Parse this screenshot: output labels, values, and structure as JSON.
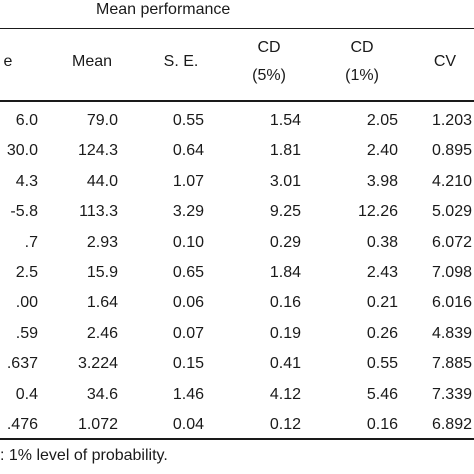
{
  "table": {
    "group_header": "Mean performance",
    "headers": [
      {
        "key": "range",
        "line1": "e",
        "line2": ""
      },
      {
        "key": "mean",
        "line1": "Mean",
        "line2": ""
      },
      {
        "key": "se",
        "line1": "S. E.",
        "line2": ""
      },
      {
        "key": "cd5",
        "line1": "CD",
        "line2": "(5%)"
      },
      {
        "key": "cd1",
        "line1": "CD",
        "line2": "(1%)"
      },
      {
        "key": "cv",
        "line1": "CV",
        "line2": ""
      }
    ],
    "rows": [
      [
        "6.0",
        "79.0",
        "0.55",
        "1.54",
        "2.05",
        "1.203"
      ],
      [
        "30.0",
        "124.3",
        "0.64",
        "1.81",
        "2.40",
        "0.895"
      ],
      [
        "4.3",
        "44.0",
        "1.07",
        "3.01",
        "3.98",
        "4.210"
      ],
      [
        "-5.8",
        "113.3",
        "3.29",
        "9.25",
        "12.26",
        "5.029"
      ],
      [
        ".7",
        "2.93",
        "0.10",
        "0.29",
        "0.38",
        "6.072"
      ],
      [
        "2.5",
        "15.9",
        "0.65",
        "1.84",
        "2.43",
        "7.098"
      ],
      [
        ".00",
        "1.64",
        "0.06",
        "0.16",
        "0.21",
        "6.016"
      ],
      [
        ".59",
        "2.46",
        "0.07",
        "0.19",
        "0.26",
        "4.839"
      ],
      [
        ".637",
        "3.224",
        "0.15",
        "0.41",
        "0.55",
        "7.885"
      ],
      [
        "0.4",
        "34.6",
        "1.46",
        "4.12",
        "5.46",
        "7.339"
      ],
      [
        ".476",
        "1.072",
        "0.04",
        "0.12",
        "0.16",
        "6.892"
      ]
    ],
    "footnote": ": 1% level of probability."
  }
}
